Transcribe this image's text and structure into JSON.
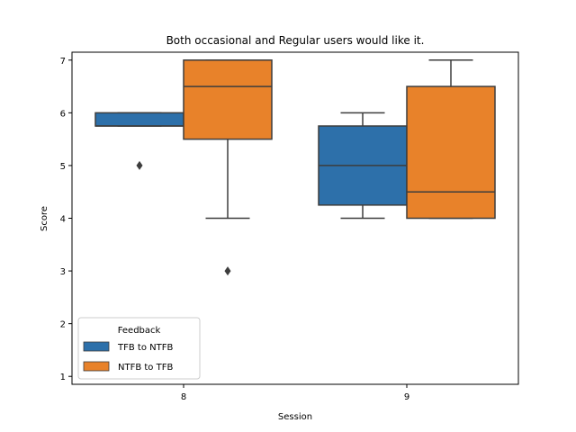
{
  "chart_data": {
    "type": "box",
    "title": "Both occasional and Regular users would like it.",
    "xlabel": "Session",
    "ylabel": "Score",
    "categories": [
      "8",
      "9"
    ],
    "ylim": [
      0.85,
      7.15
    ],
    "yticks": [
      1,
      2,
      3,
      4,
      5,
      6,
      7
    ],
    "grid": false,
    "legend": {
      "title": "Feedback",
      "placement": "lower-left"
    },
    "series": [
      {
        "name": "TFB to NTFB",
        "color": "#2d70aa",
        "boxes": [
          {
            "category": "8",
            "whisker_low": 5.75,
            "q1": 5.75,
            "median": 5.75,
            "q3": 6.0,
            "whisker_high": 6.0,
            "outliers": [
              5
            ]
          },
          {
            "category": "9",
            "whisker_low": 4.0,
            "q1": 4.25,
            "median": 5.0,
            "q3": 5.75,
            "whisker_high": 6.0,
            "outliers": []
          }
        ]
      },
      {
        "name": "NTFB to TFB",
        "color": "#e8822a",
        "boxes": [
          {
            "category": "8",
            "whisker_low": 4.0,
            "q1": 5.5,
            "median": 6.5,
            "q3": 7.0,
            "whisker_high": 7.0,
            "outliers": [
              3
            ]
          },
          {
            "category": "9",
            "whisker_low": 4.0,
            "q1": 4.0,
            "median": 4.5,
            "q3": 6.5,
            "whisker_high": 7.0,
            "outliers": []
          }
        ]
      }
    ]
  }
}
